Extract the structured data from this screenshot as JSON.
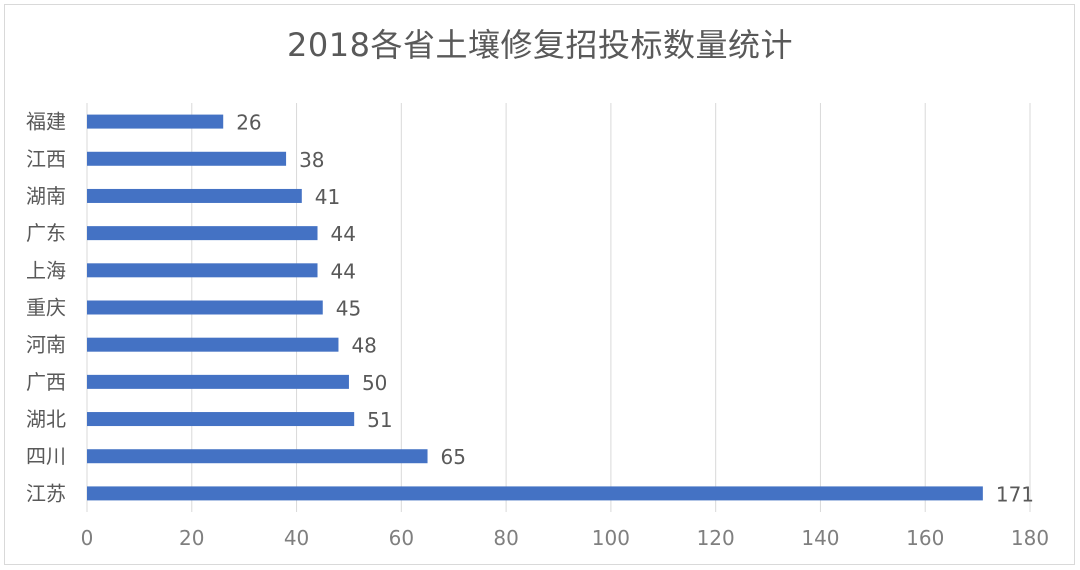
{
  "chart_data": {
    "type": "bar",
    "orientation": "horizontal",
    "title": "2018各省土壤修复招投标数量统计",
    "categories": [
      "福建",
      "江西",
      "湖南",
      "广东",
      "上海",
      "重庆",
      "河南",
      "广西",
      "湖北",
      "四川",
      "江苏"
    ],
    "values": [
      26,
      38,
      41,
      44,
      44,
      45,
      48,
      50,
      51,
      65,
      171
    ],
    "xlim": [
      0,
      180
    ],
    "xticks": [
      0,
      20,
      40,
      60,
      80,
      100,
      120,
      140,
      160,
      180
    ],
    "grid": true,
    "bar_color": "#4472c4",
    "grid_color": "#d9d9d9",
    "xlabel": "",
    "ylabel": ""
  }
}
